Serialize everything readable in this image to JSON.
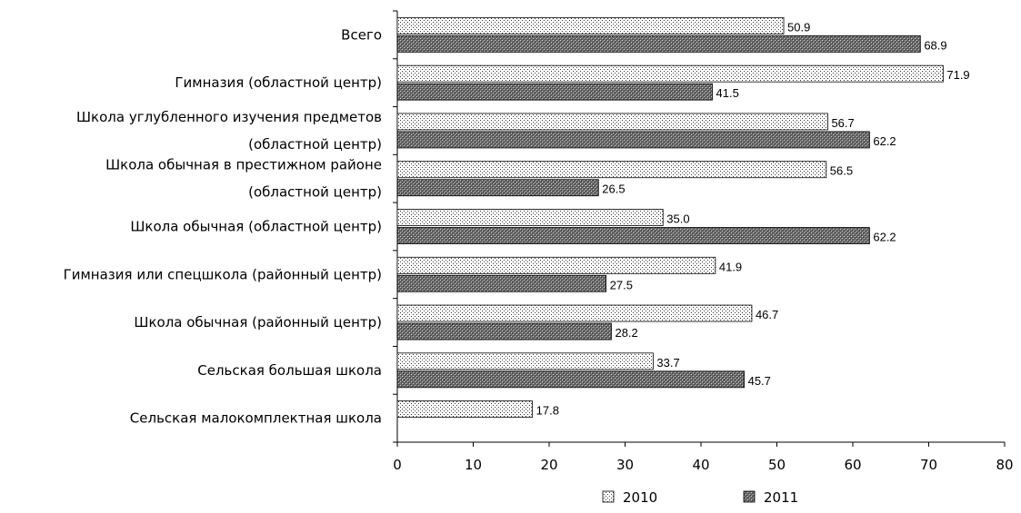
{
  "chart_data": {
    "type": "bar",
    "orientation": "horizontal",
    "categories": [
      [
        "Всего"
      ],
      [
        "Гимназия (областной центр)"
      ],
      [
        "Школа углубленного изучения предметов",
        "(областной центр)"
      ],
      [
        "Школа обычная в престижном районе",
        "(областной центр)"
      ],
      [
        "Школа обычная (областной центр)"
      ],
      [
        "Гимназия или спецшкола (районный центр)"
      ],
      [
        "Школа обычная (районный центр)"
      ],
      [
        "Сельская большая школа"
      ],
      [
        "Сельская малокомплектная школа"
      ]
    ],
    "series": [
      {
        "name": "2010",
        "values": [
          50.9,
          71.9,
          56.7,
          56.5,
          35.0,
          41.9,
          46.7,
          33.7,
          17.8
        ],
        "labels": [
          "50.9",
          "71.9",
          "56.7",
          "56.5",
          "35.0",
          "41.9",
          "46.7",
          "33.7",
          "17.8"
        ]
      },
      {
        "name": "2011",
        "values": [
          68.9,
          41.5,
          62.2,
          26.5,
          62.2,
          27.5,
          28.2,
          45.7,
          null
        ],
        "labels": [
          "68.9",
          "41.5",
          "62.2",
          "26.5",
          "62.2",
          "27.5",
          "28.2",
          "45.7",
          null
        ]
      }
    ],
    "xlim": [
      0,
      80
    ],
    "xticks": [
      "0",
      "10",
      "20",
      "30",
      "40",
      "50",
      "60",
      "70",
      "80"
    ],
    "grid": false,
    "legend_position": "bottom"
  }
}
